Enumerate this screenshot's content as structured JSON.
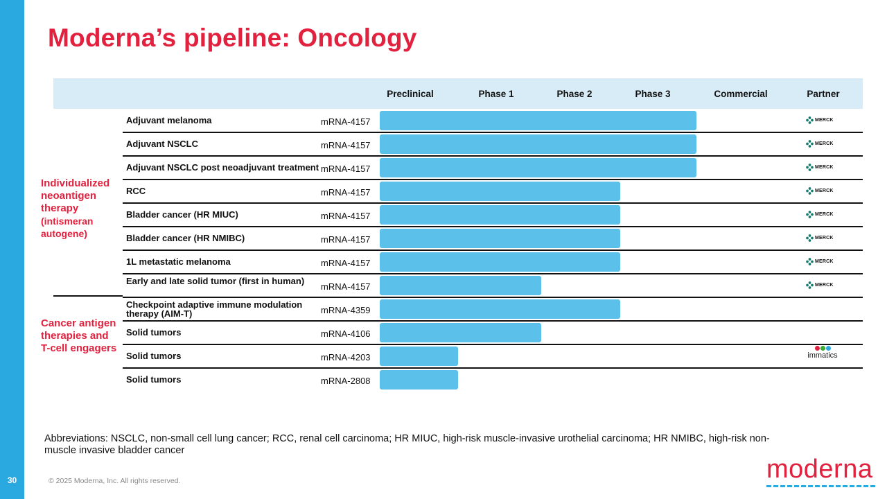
{
  "page_number": "30",
  "title": "Moderna’s pipeline: Oncology",
  "phases": [
    "Preclinical",
    "Phase 1",
    "Phase 2",
    "Phase 3",
    "Commercial",
    "Partner"
  ],
  "groups": [
    {
      "label": "Individualized neoantigen therapy",
      "sublabel": "(intismeran autogene)"
    },
    {
      "label": "Cancer antigen therapies and T-cell engagers"
    }
  ],
  "rows": [
    {
      "indication": "Adjuvant melanoma",
      "compound": "mRNA-4157",
      "stage": "Phase 3",
      "partner": "MERCK"
    },
    {
      "indication": "Adjuvant NSCLC",
      "compound": "mRNA-4157",
      "stage": "Phase 3",
      "partner": "MERCK"
    },
    {
      "indication": "Adjuvant NSCLC post neoadjuvant treatment",
      "compound": "mRNA-4157",
      "stage": "Phase 3",
      "partner": "MERCK"
    },
    {
      "indication": "RCC",
      "compound": "mRNA-4157",
      "stage": "Phase 2",
      "partner": "MERCK"
    },
    {
      "indication": "Bladder cancer (HR MIUC)",
      "compound": "mRNA-4157",
      "stage": "Phase 2",
      "partner": "MERCK"
    },
    {
      "indication": "Bladder cancer (HR NMIBC)",
      "compound": "mRNA-4157",
      "stage": "Phase 2",
      "partner": "MERCK"
    },
    {
      "indication": "1L metastatic melanoma",
      "compound": "mRNA-4157",
      "stage": "Phase 2",
      "partner": "MERCK"
    },
    {
      "indication": "Early and late solid tumor (first in human)",
      "compound": "mRNA-4157",
      "stage": "Phase 1",
      "partner": "MERCK"
    },
    {
      "indication": "Checkpoint adaptive immune modulation therapy (AIM-T)",
      "compound": "mRNA-4359",
      "stage": "Phase 2",
      "partner": ""
    },
    {
      "indication": "Solid tumors",
      "compound": "mRNA-4106",
      "stage": "Phase 1",
      "partner": ""
    },
    {
      "indication": "Solid tumors",
      "compound": "mRNA-4203",
      "stage": "Preclinical",
      "partner": "immatics"
    },
    {
      "indication": "Solid tumors",
      "compound": "mRNA-2808",
      "stage": "Preclinical",
      "partner": ""
    }
  ],
  "abbreviations": "Abbreviations: NSCLC, non-small cell lung cancer; RCC, renal cell carcinoma; HR MIUC, high-risk muscle-invasive urothelial carcinoma; HR NMIBC, high-risk non-muscle invasive bladder cancer",
  "copyright": "© 2025 Moderna, Inc. All rights reserved.",
  "logo_text": "moderna",
  "colors": {
    "brand_red": "#e2213f",
    "accent_blue": "#2aa8e0",
    "bar_blue": "#5bc0ea",
    "header_band": "#d8ecf7"
  },
  "icons": {
    "merck": "merck-logo-icon",
    "immatics": "immatics-logo-icon"
  }
}
